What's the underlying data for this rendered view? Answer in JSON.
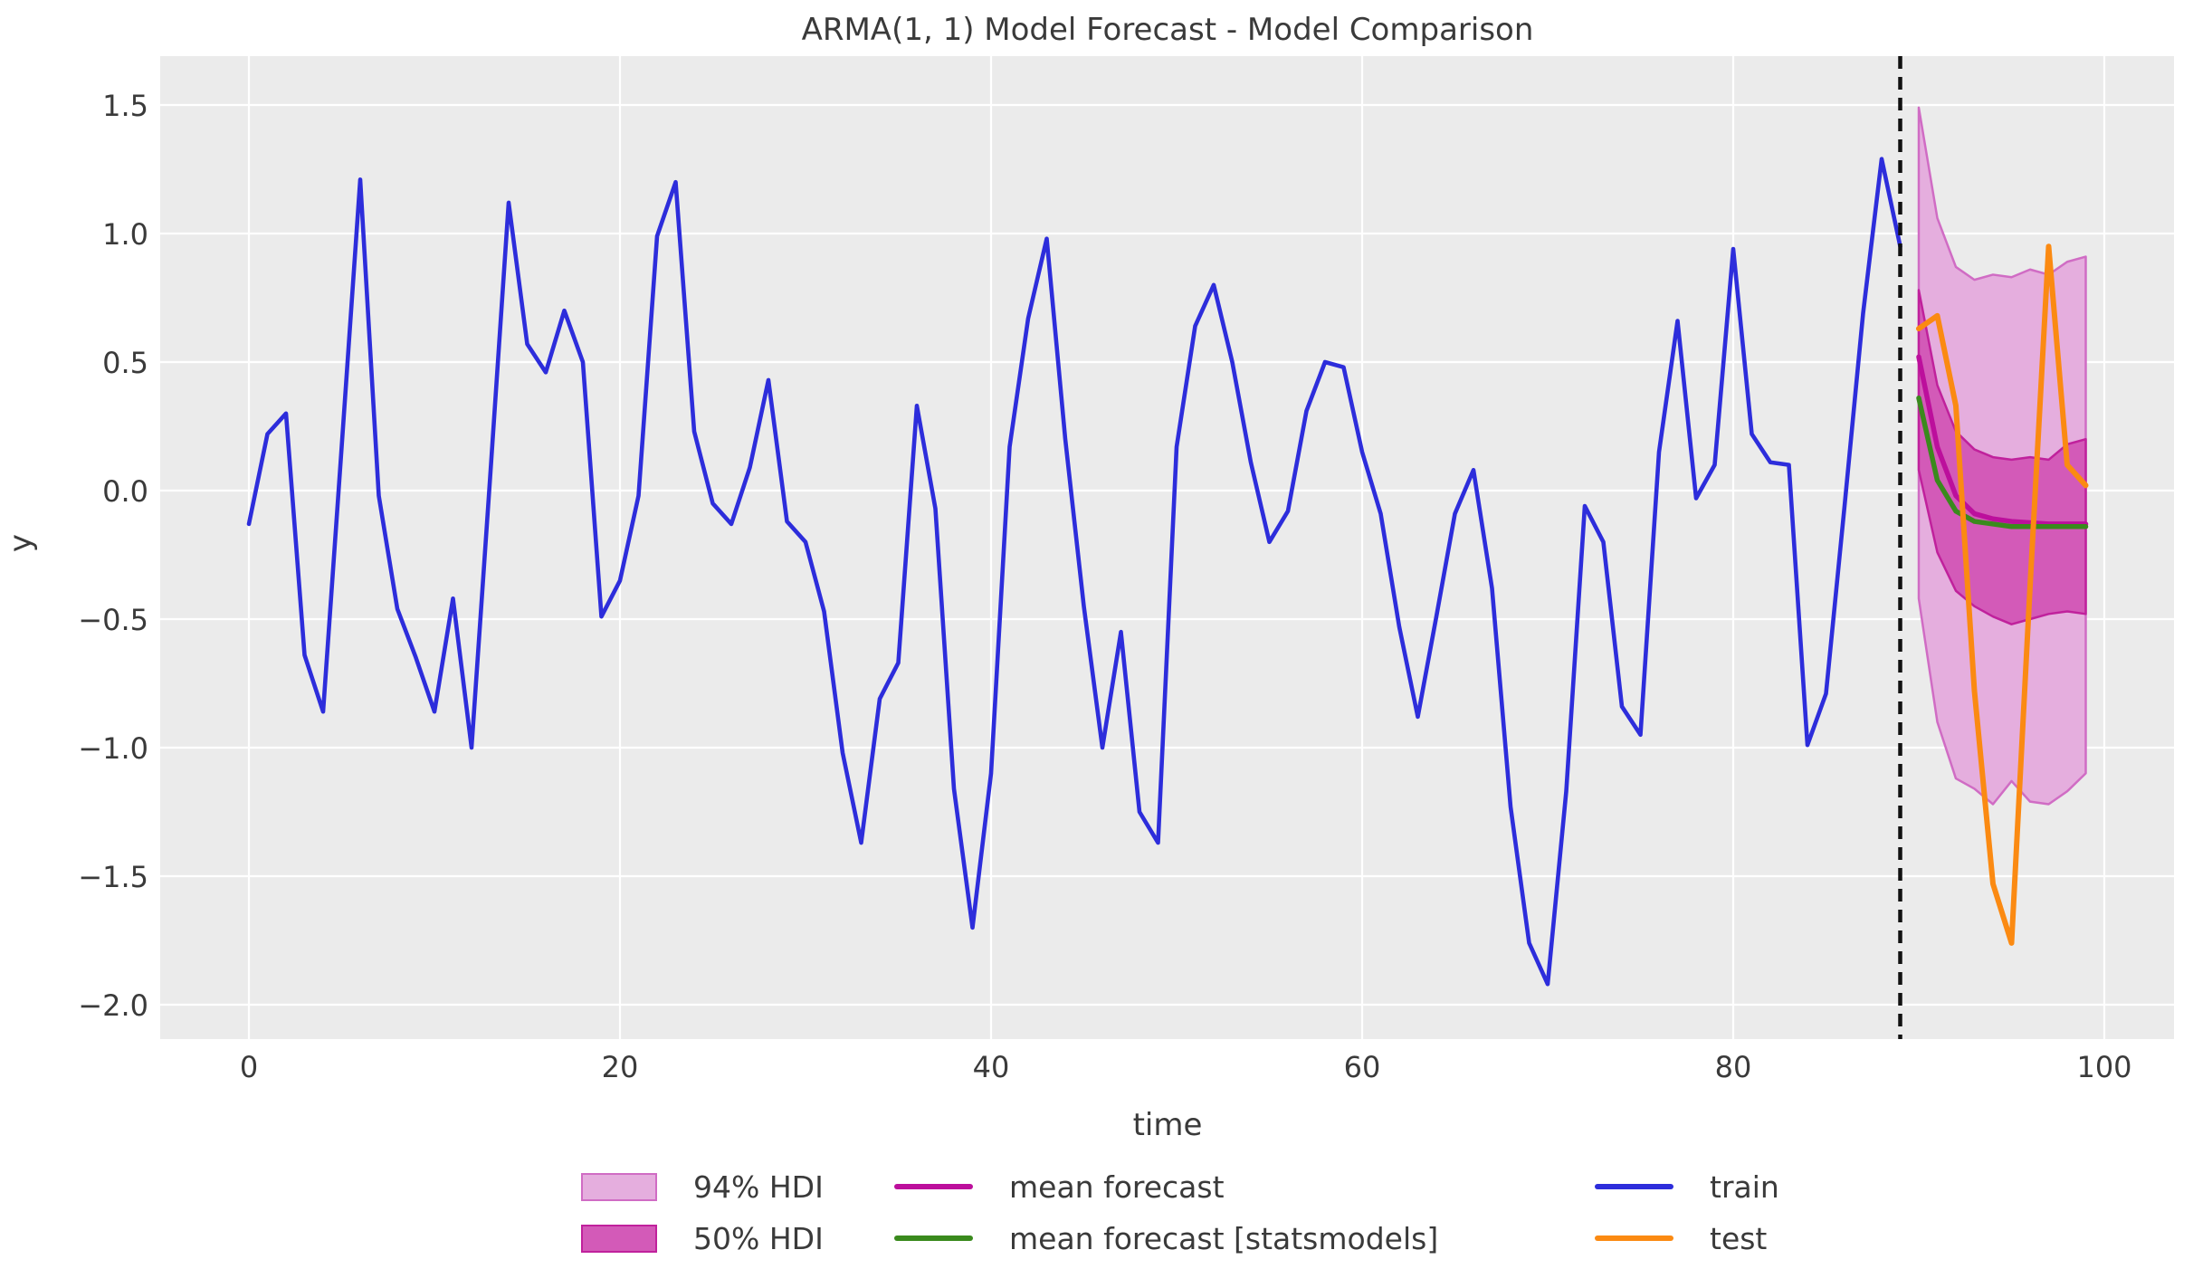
{
  "chart_data": {
    "type": "line",
    "title": "ARMA(1, 1) Model Forecast - Model Comparison",
    "xlabel": "time",
    "ylabel": "y",
    "grid": true,
    "legend_position": "below-axes",
    "xlim": [
      -7.9,
      103.4
    ],
    "ylim": [
      -2.13,
      1.69
    ],
    "x_ticks": {
      "values": [
        0,
        20,
        40,
        60,
        80,
        100
      ],
      "labels": [
        "0",
        "20",
        "40",
        "60",
        "80",
        "100"
      ]
    },
    "y_ticks": {
      "values": [
        1.5,
        1.0,
        0.5,
        0.0,
        -0.5,
        -1.0,
        -1.5,
        -2.0
      ],
      "labels": [
        "1.5",
        "1.0",
        "0.5",
        "0.0",
        "−0.5",
        "−1.0",
        "−1.5",
        "−2.0"
      ]
    },
    "train_test_split_x": 89,
    "train": {
      "x_start": 0,
      "values": [
        -0.13,
        0.22,
        0.3,
        -0.64,
        -0.86,
        0.17,
        1.21,
        -0.02,
        -0.46,
        -0.65,
        -0.86,
        -0.42,
        -1.0,
        0.05,
        1.12,
        0.57,
        0.46,
        0.7,
        0.5,
        -0.49,
        -0.35,
        -0.02,
        0.99,
        1.2,
        0.23,
        -0.05,
        -0.13,
        0.09,
        0.43,
        -0.12,
        -0.2,
        -0.47,
        -1.02,
        -1.37,
        -0.81,
        -0.67,
        0.33,
        -0.07,
        -1.16,
        -1.7,
        -1.1,
        0.17,
        0.67,
        0.98,
        0.2,
        -0.45,
        -1.0,
        -0.55,
        -1.25,
        -1.37,
        0.17,
        0.64,
        0.8,
        0.5,
        0.11,
        -0.2,
        -0.08,
        0.31,
        0.5,
        0.48,
        0.15,
        -0.09,
        -0.53,
        -0.88,
        -0.49,
        -0.09,
        0.08,
        -0.38,
        -1.23,
        -1.76,
        -1.92,
        -1.17,
        -0.06,
        -0.2,
        -0.84,
        -0.95,
        0.15,
        0.66,
        -0.03,
        0.1,
        0.94,
        0.22,
        0.11,
        0.1,
        -0.99,
        -0.79,
        -0.06,
        0.69,
        1.29,
        0.95
      ]
    },
    "test": {
      "x_start": 90,
      "values": [
        0.63,
        0.68,
        0.33,
        -0.78,
        -1.53,
        -1.76,
        -0.37,
        0.95,
        0.1,
        0.02
      ]
    },
    "forecast": {
      "x_start": 90,
      "mean": [
        0.52,
        0.17,
        -0.02,
        -0.09,
        -0.11,
        -0.12,
        -0.125,
        -0.13,
        -0.13,
        -0.13
      ],
      "mean_statsmodels": [
        0.36,
        0.04,
        -0.08,
        -0.12,
        -0.13,
        -0.14,
        -0.14,
        -0.14,
        -0.14,
        -0.14
      ],
      "hdi_94": {
        "upper": [
          1.49,
          1.06,
          0.87,
          0.82,
          0.84,
          0.83,
          0.86,
          0.84,
          0.89,
          0.91
        ],
        "lower": [
          -0.42,
          -0.9,
          -1.12,
          -1.16,
          -1.22,
          -1.13,
          -1.21,
          -1.22,
          -1.17,
          -1.1
        ]
      },
      "hdi_50": {
        "upper": [
          0.78,
          0.41,
          0.23,
          0.16,
          0.13,
          0.12,
          0.13,
          0.12,
          0.18,
          0.2
        ],
        "lower": [
          0.08,
          -0.24,
          -0.39,
          -0.45,
          -0.49,
          -0.52,
          -0.5,
          -0.48,
          -0.47,
          -0.48
        ]
      }
    },
    "legend": {
      "items": [
        {
          "label": "94% HDI",
          "type": "patch",
          "color": "hdi94_fill",
          "edge": "hdi94_edge"
        },
        {
          "label": "50% HDI",
          "type": "patch",
          "color": "hdi50_fill",
          "edge": "hdi50_edge"
        },
        {
          "label": "mean forecast",
          "type": "line",
          "color": "mean_forecast"
        },
        {
          "label": "mean forecast [statsmodels]",
          "type": "line",
          "color": "mean_statsmodels"
        },
        {
          "label": "train",
          "type": "line",
          "color": "train"
        },
        {
          "label": "test",
          "type": "line",
          "color": "test"
        }
      ]
    }
  },
  "colors": {
    "train": "#2d2ddb",
    "test": "#fb8a12",
    "mean_forecast": "#bc0f9c",
    "mean_statsmodels": "#3a8a1d",
    "hdi94_fill": "#e5aede",
    "hdi94_edge": "#d06cc4",
    "hdi50_fill": "#d35ab8",
    "hdi50_edge": "#c0219c",
    "split_line": "#111111",
    "plot_bg": "#ebebeb",
    "grid_line": "#ffffff",
    "text": "#3a3a3a"
  }
}
